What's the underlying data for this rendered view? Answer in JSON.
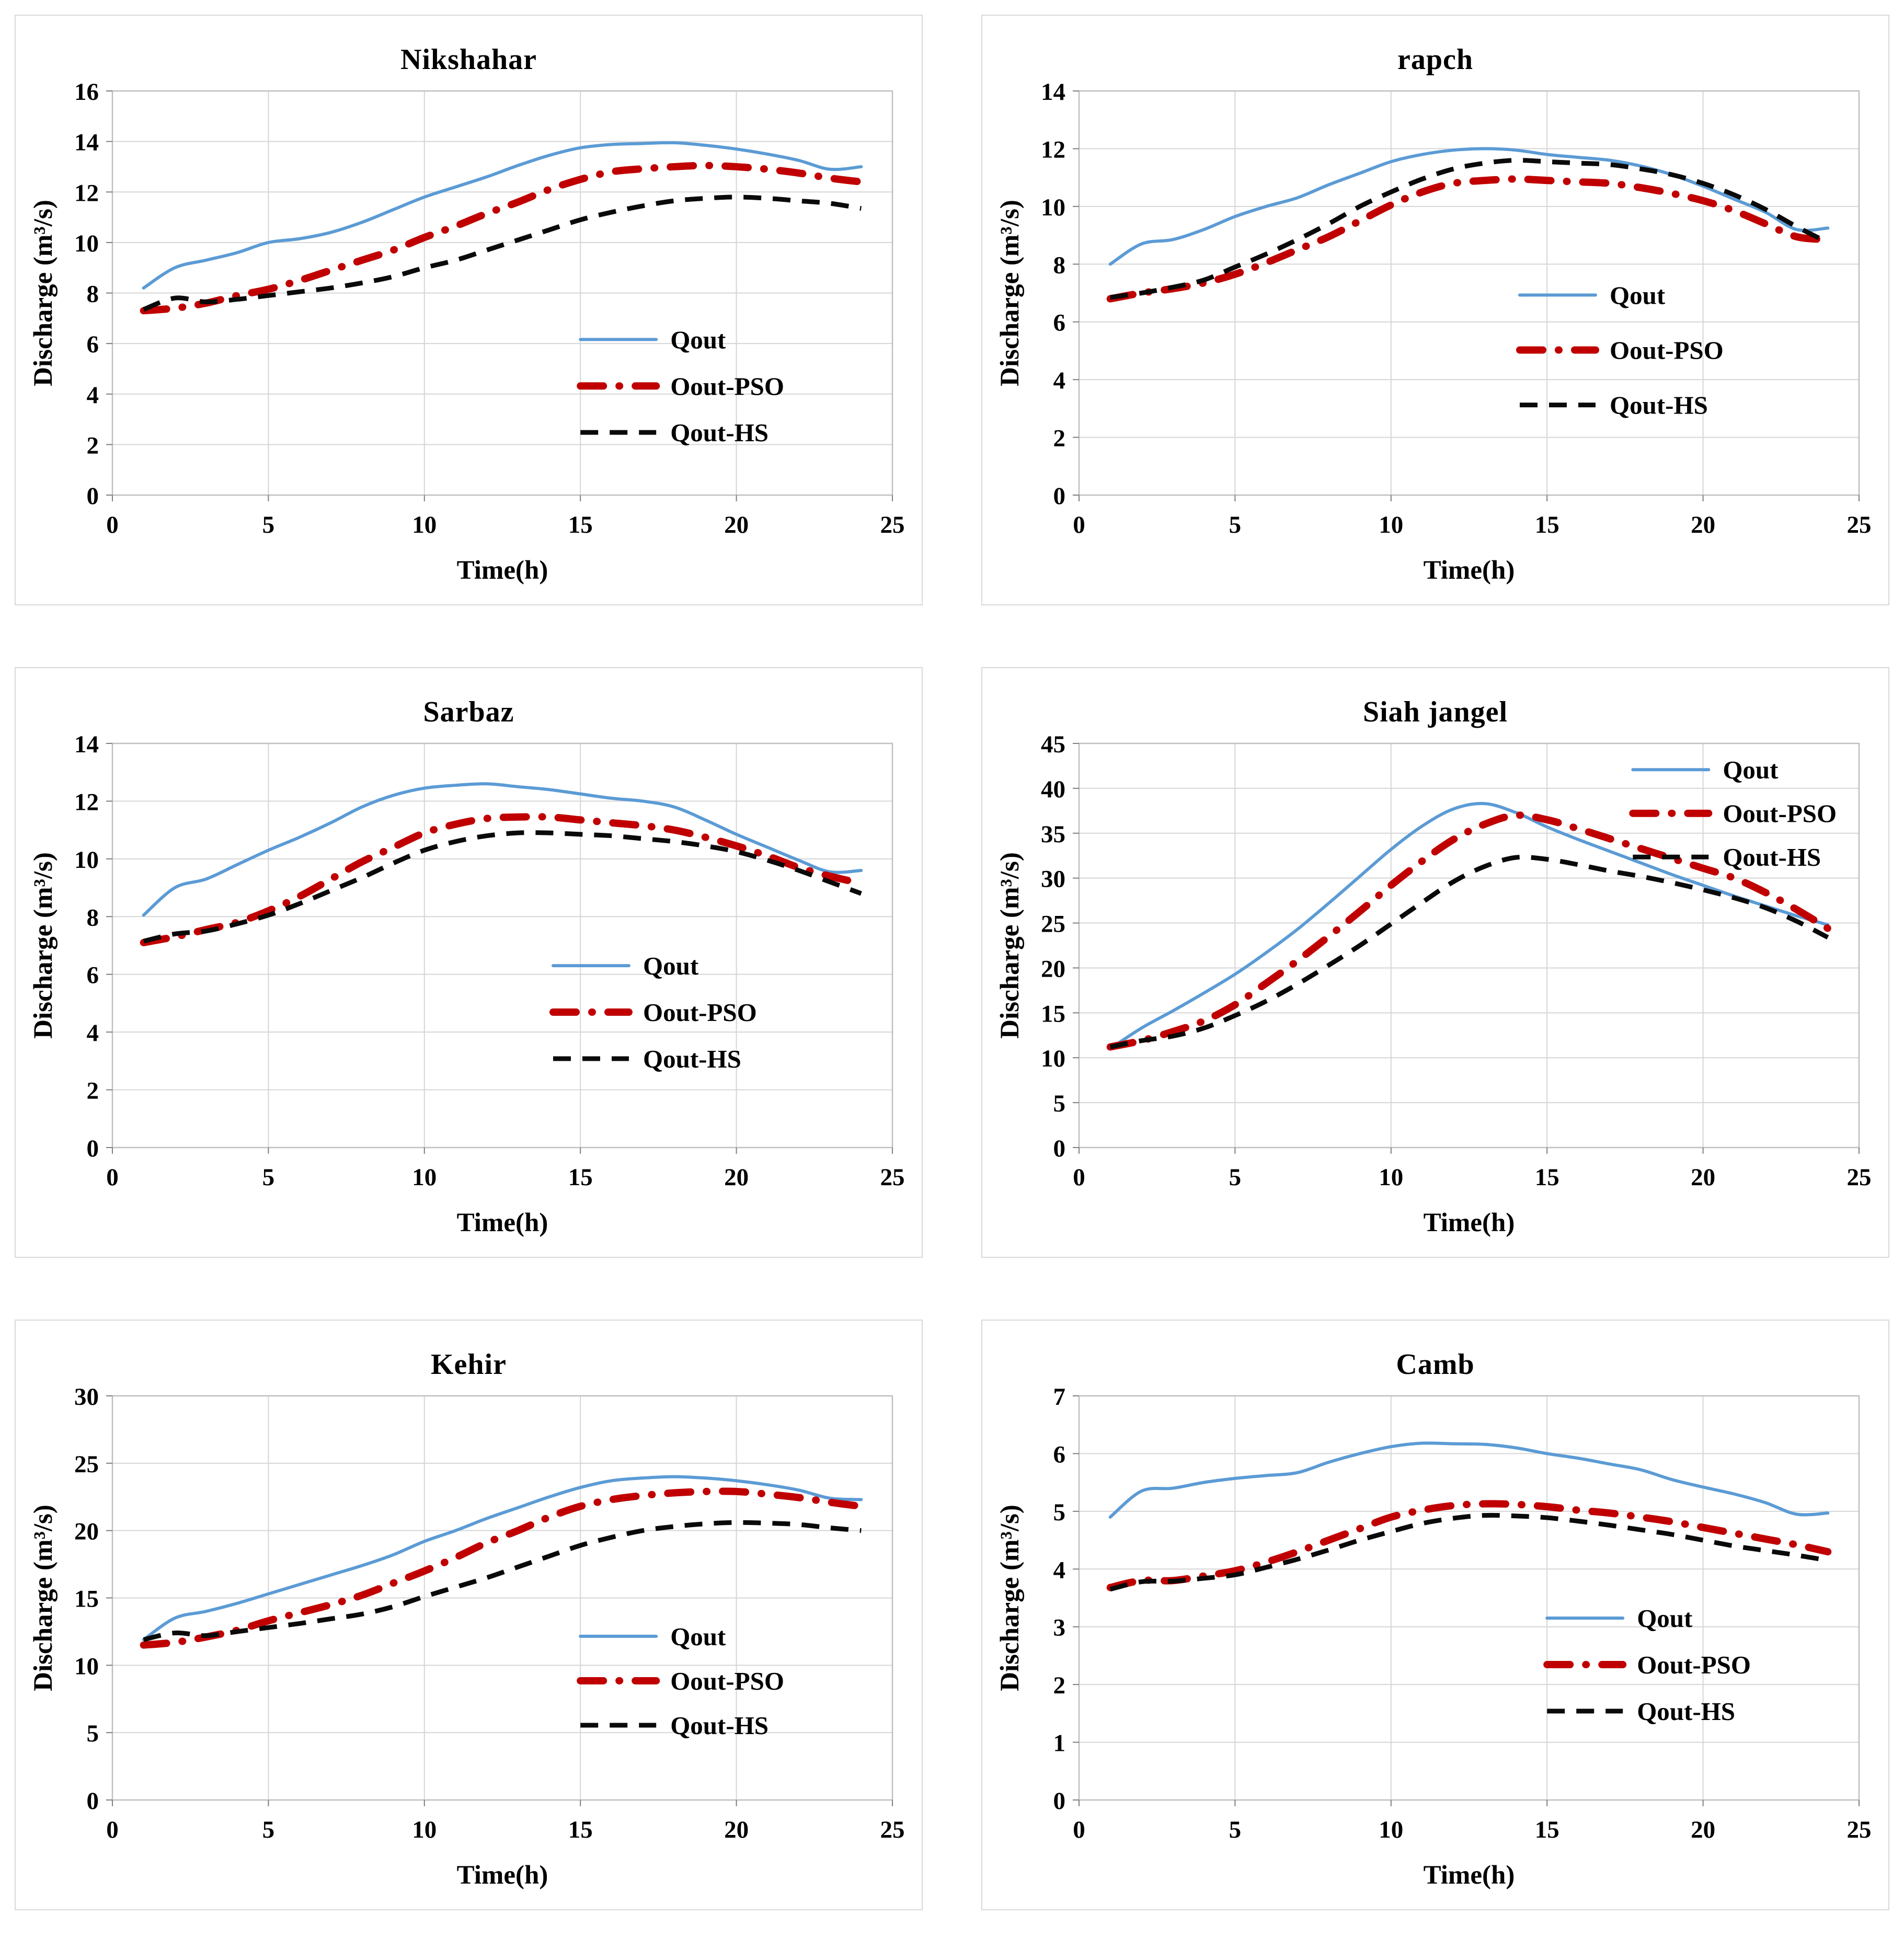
{
  "page": {
    "background": "#ffffff"
  },
  "colors": {
    "qout": "#5B9BD5",
    "pso": "#C00000",
    "hs": "#0a0a0a",
    "grid": "#d6d6d6",
    "plot_border": "#bfbfbf",
    "tick": "#7f7f7f",
    "text": "#000000",
    "panel_border": "#d9d9d9"
  },
  "chart_data": [
    {
      "type": "line",
      "title": "Nikshahar",
      "xlabel": "Time(h)",
      "ylabel": "Discharge (m³/s)",
      "x": [
        1,
        2,
        3,
        4,
        5,
        6,
        7,
        8,
        9,
        10,
        11,
        12,
        13,
        14,
        15,
        16,
        17,
        18,
        19,
        20,
        21,
        22,
        23,
        24
      ],
      "xlim": [
        0,
        25
      ],
      "xtick_step": 5,
      "ylim": [
        0,
        16
      ],
      "ytick_step": 2,
      "grid": true,
      "legend_position": {
        "fx": 0.6,
        "fy": 0.615,
        "dy": 0.115
      },
      "series": [
        {
          "name": "Qout",
          "color_key": "qout",
          "style": "solid",
          "values": [
            8.2,
            9.0,
            9.3,
            9.6,
            10.0,
            10.15,
            10.4,
            10.8,
            11.3,
            11.8,
            12.2,
            12.6,
            13.05,
            13.45,
            13.75,
            13.88,
            13.92,
            13.95,
            13.85,
            13.7,
            13.5,
            13.25,
            12.9,
            13.0
          ]
        },
        {
          "name": "Oout-PSO",
          "color_key": "pso",
          "style": "dashdot",
          "values": [
            7.3,
            7.4,
            7.6,
            7.9,
            8.15,
            8.5,
            8.9,
            9.3,
            9.7,
            10.2,
            10.65,
            11.15,
            11.6,
            12.1,
            12.5,
            12.8,
            12.92,
            13.0,
            13.05,
            13.0,
            12.9,
            12.75,
            12.55,
            12.4
          ]
        },
        {
          "name": "Qout-HS",
          "color_key": "hs",
          "style": "dashed",
          "values": [
            7.35,
            7.8,
            7.65,
            7.75,
            7.9,
            8.05,
            8.2,
            8.4,
            8.65,
            9.0,
            9.3,
            9.7,
            10.1,
            10.5,
            10.9,
            11.2,
            11.45,
            11.65,
            11.75,
            11.8,
            11.75,
            11.65,
            11.55,
            11.35
          ]
        }
      ]
    },
    {
      "type": "line",
      "title": "rapch",
      "xlabel": "Time(h)",
      "ylabel": "Discharge (m³/s)",
      "x": [
        1,
        2,
        3,
        4,
        5,
        6,
        7,
        8,
        9,
        10,
        11,
        12,
        13,
        14,
        15,
        16,
        17,
        18,
        19,
        20,
        21,
        22,
        23,
        24
      ],
      "xlim": [
        0,
        25
      ],
      "xtick_step": 5,
      "ylim": [
        0,
        14
      ],
      "ytick_step": 2,
      "grid": true,
      "legend_position": {
        "fx": 0.565,
        "fy": 0.505,
        "dy": 0.136
      },
      "series": [
        {
          "name": "Qout",
          "color_key": "qout",
          "style": "solid",
          "values": [
            8.0,
            8.7,
            8.85,
            9.2,
            9.65,
            10.0,
            10.3,
            10.75,
            11.15,
            11.55,
            11.8,
            11.95,
            12.0,
            11.95,
            11.8,
            11.7,
            11.6,
            11.4,
            11.1,
            10.7,
            10.25,
            9.8,
            9.2,
            9.25
          ]
        },
        {
          "name": "Oout-PSO",
          "color_key": "pso",
          "style": "dashdot",
          "values": [
            6.8,
            7.0,
            7.15,
            7.35,
            7.65,
            8.05,
            8.5,
            8.95,
            9.5,
            10.05,
            10.5,
            10.8,
            10.9,
            10.95,
            10.9,
            10.85,
            10.8,
            10.65,
            10.45,
            10.2,
            9.85,
            9.4,
            8.95,
            8.85
          ]
        },
        {
          "name": "Qout-HS",
          "color_key": "hs",
          "style": "dashed",
          "values": [
            6.85,
            7.0,
            7.2,
            7.45,
            7.9,
            8.35,
            8.85,
            9.4,
            10.0,
            10.5,
            10.95,
            11.3,
            11.5,
            11.6,
            11.55,
            11.5,
            11.45,
            11.3,
            11.1,
            10.8,
            10.4,
            9.9,
            9.3,
            8.75
          ]
        }
      ]
    },
    {
      "type": "line",
      "title": "Sarbaz",
      "xlabel": "Time(h)",
      "ylabel": "Discharge (m³/s)",
      "x": [
        1,
        2,
        3,
        4,
        5,
        6,
        7,
        8,
        9,
        10,
        11,
        12,
        13,
        14,
        15,
        16,
        17,
        18,
        19,
        20,
        21,
        22,
        23,
        24
      ],
      "xlim": [
        0,
        25
      ],
      "xtick_step": 5,
      "ylim": [
        0,
        14
      ],
      "ytick_step": 2,
      "grid": true,
      "legend_position": {
        "fx": 0.565,
        "fy": 0.55,
        "dy": 0.115
      },
      "series": [
        {
          "name": "Qout",
          "color_key": "qout",
          "style": "solid",
          "values": [
            8.05,
            9.0,
            9.3,
            9.8,
            10.3,
            10.75,
            11.25,
            11.8,
            12.2,
            12.45,
            12.55,
            12.6,
            12.5,
            12.4,
            12.25,
            12.1,
            12.0,
            11.8,
            11.35,
            10.85,
            10.4,
            9.95,
            9.55,
            9.6
          ]
        },
        {
          "name": "Oout-PSO",
          "color_key": "pso",
          "style": "dashdot",
          "values": [
            7.1,
            7.3,
            7.55,
            7.8,
            8.2,
            8.7,
            9.3,
            9.9,
            10.4,
            10.9,
            11.2,
            11.4,
            11.45,
            11.45,
            11.35,
            11.25,
            11.15,
            11.0,
            10.75,
            10.45,
            10.1,
            9.7,
            9.4,
            9.15
          ]
        },
        {
          "name": "Qout-HS",
          "color_key": "hs",
          "style": "dashed",
          "values": [
            7.15,
            7.4,
            7.5,
            7.75,
            8.05,
            8.45,
            8.9,
            9.35,
            9.85,
            10.3,
            10.6,
            10.8,
            10.9,
            10.9,
            10.85,
            10.8,
            10.7,
            10.6,
            10.45,
            10.25,
            9.95,
            9.6,
            9.2,
            8.8
          ]
        }
      ]
    },
    {
      "type": "line",
      "title": "Siah jangel",
      "xlabel": "Time(h)",
      "ylabel": "Discharge (m³/s)",
      "x": [
        1,
        2,
        3,
        4,
        5,
        6,
        7,
        8,
        9,
        10,
        11,
        12,
        13,
        14,
        15,
        16,
        17,
        18,
        19,
        20,
        21,
        22,
        23,
        24
      ],
      "xlim": [
        0,
        25
      ],
      "xtick_step": 5,
      "ylim": [
        0,
        45
      ],
      "ytick_step": 5,
      "grid": true,
      "legend_position": {
        "fx": 0.71,
        "fy": 0.065,
        "dy": 0.108
      },
      "series": [
        {
          "name": "Qout",
          "color_key": "qout",
          "style": "solid",
          "values": [
            11.0,
            13.3,
            15.2,
            17.2,
            19.3,
            21.7,
            24.3,
            27.2,
            30.2,
            33.2,
            35.8,
            37.7,
            38.3,
            37.3,
            35.7,
            34.3,
            33.0,
            31.7,
            30.4,
            29.2,
            28.0,
            26.9,
            25.8,
            24.8
          ]
        },
        {
          "name": "Oout-PSO",
          "color_key": "pso",
          "style": "dashdot",
          "values": [
            11.2,
            11.9,
            12.9,
            14.1,
            15.9,
            18.3,
            20.8,
            23.5,
            26.3,
            29.2,
            31.9,
            34.3,
            36.0,
            37.0,
            36.5,
            35.5,
            34.4,
            33.3,
            32.2,
            31.1,
            30.0,
            28.4,
            26.5,
            24.4
          ]
        },
        {
          "name": "Qout-HS",
          "color_key": "hs",
          "style": "dashed",
          "values": [
            11.2,
            11.9,
            12.4,
            13.3,
            14.7,
            16.3,
            18.2,
            20.3,
            22.5,
            24.9,
            27.3,
            29.6,
            31.3,
            32.3,
            32.1,
            31.5,
            30.8,
            30.2,
            29.5,
            28.7,
            27.8,
            26.7,
            25.2,
            23.4
          ]
        }
      ]
    },
    {
      "type": "line",
      "title": "Kehir",
      "xlabel": "Time(h)",
      "ylabel": "Discharge (m³/s)",
      "x": [
        1,
        2,
        3,
        4,
        5,
        6,
        7,
        8,
        9,
        10,
        11,
        12,
        13,
        14,
        15,
        16,
        17,
        18,
        19,
        20,
        21,
        22,
        23,
        24
      ],
      "xlim": [
        0,
        25
      ],
      "xtick_step": 5,
      "ylim": [
        0,
        30
      ],
      "ytick_step": 5,
      "grid": true,
      "legend_position": {
        "fx": 0.6,
        "fy": 0.595,
        "dy": 0.11
      },
      "series": [
        {
          "name": "Qout",
          "color_key": "qout",
          "style": "solid",
          "values": [
            11.9,
            13.5,
            14.0,
            14.6,
            15.3,
            16.0,
            16.7,
            17.4,
            18.2,
            19.2,
            20.0,
            20.9,
            21.7,
            22.5,
            23.2,
            23.7,
            23.9,
            24.0,
            23.9,
            23.7,
            23.4,
            23.0,
            22.4,
            22.3
          ]
        },
        {
          "name": "Oout-PSO",
          "color_key": "pso",
          "style": "dashdot",
          "values": [
            11.5,
            11.7,
            12.1,
            12.6,
            13.3,
            13.9,
            14.5,
            15.2,
            16.1,
            17.0,
            18.0,
            19.1,
            20.0,
            21.0,
            21.8,
            22.3,
            22.6,
            22.8,
            22.9,
            22.9,
            22.7,
            22.45,
            22.1,
            21.8
          ]
        },
        {
          "name": "Qout-HS",
          "color_key": "hs",
          "style": "dashed",
          "values": [
            11.9,
            12.4,
            12.2,
            12.5,
            12.8,
            13.1,
            13.45,
            13.8,
            14.35,
            15.1,
            15.8,
            16.5,
            17.3,
            18.1,
            18.9,
            19.5,
            20.0,
            20.3,
            20.5,
            20.6,
            20.55,
            20.45,
            20.2,
            20.0
          ]
        }
      ]
    },
    {
      "type": "line",
      "title": "Camb",
      "xlabel": "Time(h)",
      "ylabel": "Discharge (m³/s)",
      "x": [
        1,
        2,
        3,
        4,
        5,
        6,
        7,
        8,
        9,
        10,
        11,
        12,
        13,
        14,
        15,
        16,
        17,
        18,
        19,
        20,
        21,
        22,
        23,
        24
      ],
      "xlim": [
        0,
        25
      ],
      "xtick_step": 5,
      "ylim": [
        0,
        7
      ],
      "ytick_step": 1,
      "grid": true,
      "legend_position": {
        "fx": 0.6,
        "fy": 0.55,
        "dy": 0.115
      },
      "series": [
        {
          "name": "Qout",
          "color_key": "qout",
          "style": "solid",
          "values": [
            4.9,
            5.35,
            5.4,
            5.5,
            5.57,
            5.62,
            5.67,
            5.85,
            6.0,
            6.12,
            6.18,
            6.17,
            6.16,
            6.1,
            6.0,
            5.92,
            5.82,
            5.72,
            5.55,
            5.42,
            5.3,
            5.15,
            4.95,
            4.97
          ]
        },
        {
          "name": "Oout-PSO",
          "color_key": "pso",
          "style": "dashdot",
          "values": [
            3.68,
            3.8,
            3.8,
            3.88,
            3.97,
            4.12,
            4.3,
            4.5,
            4.7,
            4.9,
            5.02,
            5.1,
            5.13,
            5.12,
            5.08,
            5.02,
            4.97,
            4.9,
            4.82,
            4.72,
            4.62,
            4.52,
            4.42,
            4.3
          ]
        },
        {
          "name": "Qout-HS",
          "color_key": "hs",
          "style": "dashed",
          "values": [
            3.65,
            3.78,
            3.79,
            3.84,
            3.9,
            4.03,
            4.17,
            4.33,
            4.5,
            4.65,
            4.79,
            4.88,
            4.93,
            4.92,
            4.89,
            4.83,
            4.76,
            4.68,
            4.6,
            4.5,
            4.4,
            4.32,
            4.24,
            4.15
          ]
        }
      ]
    }
  ]
}
